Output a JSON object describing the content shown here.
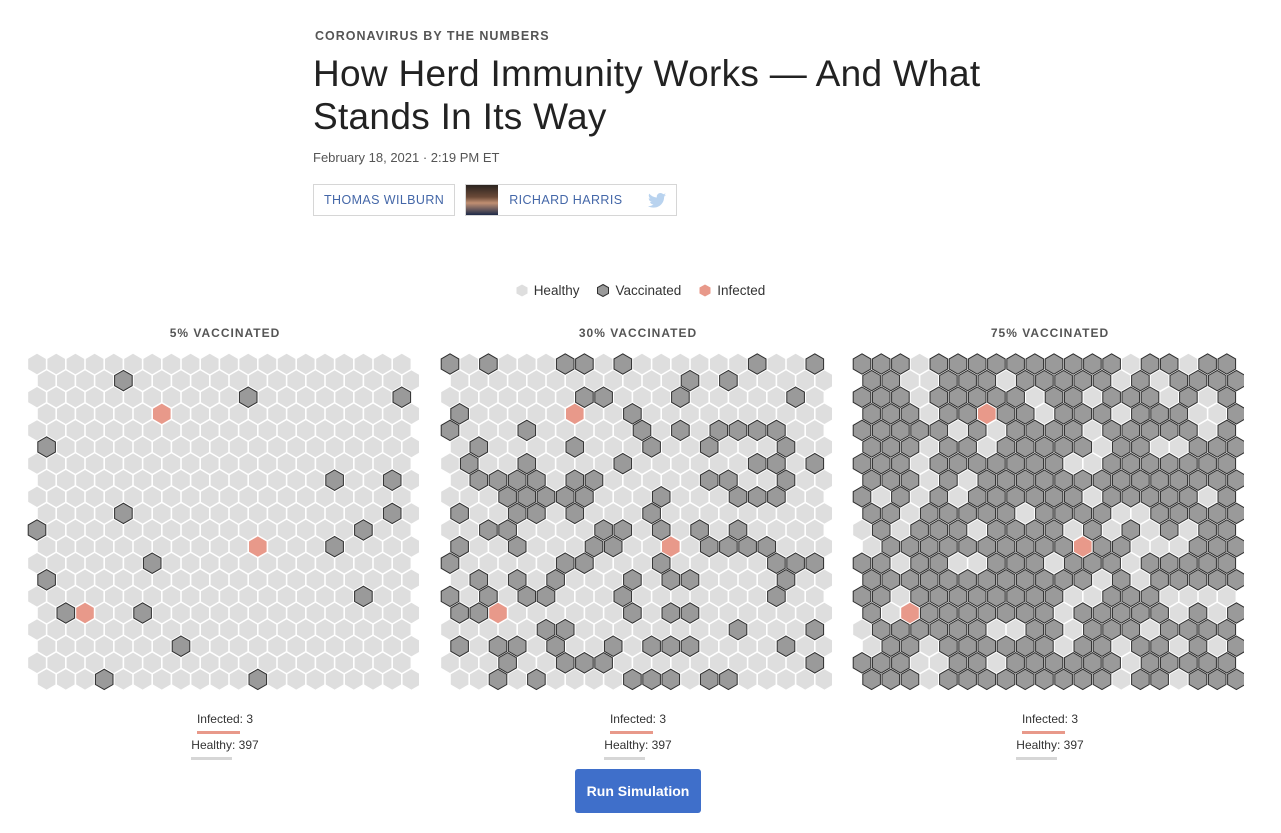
{
  "article": {
    "kicker": "CORONAVIRUS BY THE NUMBERS",
    "headline": "How Herd Immunity Works — And What Stands In Its Way",
    "dateline": "February 18, 2021 · 2:19 PM ET",
    "authors": [
      {
        "name": "THOMAS WILBURN"
      },
      {
        "name": "RICHARD HARRIS"
      }
    ]
  },
  "legend": {
    "healthy": "Healthy",
    "vaccinated": "Vaccinated",
    "infected": "Infected"
  },
  "colors": {
    "healthy": "#dedede",
    "vaccinated": "#9a9a9a",
    "vaccinated_stroke": "#2e2e2e",
    "infected": "#e8998a",
    "button": "#3f6fca",
    "author_link": "#4467a8"
  },
  "panels": [
    {
      "title": "5% VACCINATED",
      "vaccinated_rate": 0.05,
      "infected_label": "Infected",
      "infected_count": "3",
      "healthy_label": "Healthy",
      "healthy_count": "397"
    },
    {
      "title": "30% VACCINATED",
      "vaccinated_rate": 0.3,
      "infected_label": "Infected",
      "infected_count": "3",
      "healthy_label": "Healthy",
      "healthy_count": "397"
    },
    {
      "title": "75% VACCINATED",
      "vaccinated_rate": 0.75,
      "infected_label": "Infected",
      "infected_count": "3",
      "healthy_label": "Healthy",
      "healthy_count": "397"
    }
  ],
  "actions": {
    "run_label": "Run Simulation"
  }
}
